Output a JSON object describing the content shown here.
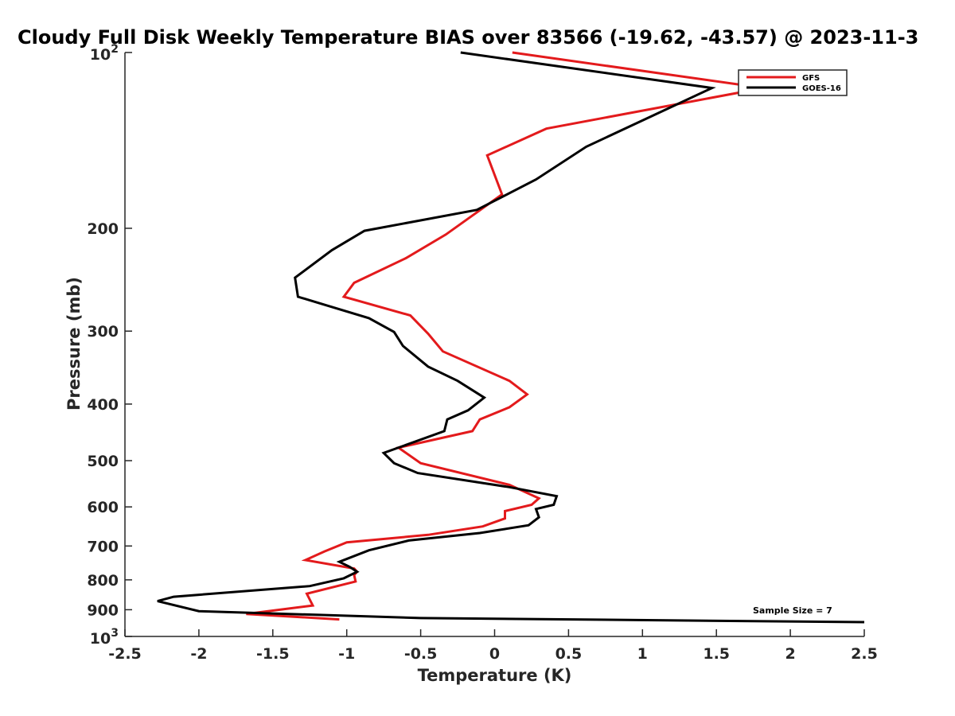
{
  "chart_data": {
    "type": "line",
    "title": "Cloudy Full Disk Weekly Temperature BIAS over 83566 (-19.62, -43.57) @ 2023-11-3",
    "xlabel": "Temperature (K)",
    "ylabel": "Pressure (mb)",
    "xlim": [
      -2.5,
      2.5
    ],
    "ylim": [
      100,
      1000
    ],
    "y_scale": "log",
    "y_reversed": true,
    "xticks": [
      "-2.5",
      "-2",
      "-1.5",
      "-1",
      "-0.5",
      "0",
      "0.5",
      "1",
      "1.5",
      "2",
      "2.5"
    ],
    "yticks": [
      {
        "value": 100,
        "base": "10",
        "exp": "2"
      },
      {
        "value": 200,
        "label": "200"
      },
      {
        "value": 300,
        "label": "300"
      },
      {
        "value": 400,
        "label": "400"
      },
      {
        "value": 500,
        "label": "500"
      },
      {
        "value": 600,
        "label": "600"
      },
      {
        "value": 700,
        "label": "700"
      },
      {
        "value": 800,
        "label": "800"
      },
      {
        "value": 900,
        "label": "900"
      },
      {
        "value": 1000,
        "base": "10",
        "exp": "3"
      }
    ],
    "grid": false,
    "legend_position": "top-right",
    "annotation": "Sample Size = 7",
    "series": [
      {
        "name": "GFS",
        "color": "#e31a1c",
        "points": [
          [
            0.12,
            100
          ],
          [
            1.82,
            115
          ],
          [
            0.35,
            135
          ],
          [
            -0.05,
            150
          ],
          [
            0.05,
            175
          ],
          [
            -0.33,
            205
          ],
          [
            -0.6,
            225
          ],
          [
            -0.95,
            248
          ],
          [
            -1.02,
            262
          ],
          [
            -0.57,
            282
          ],
          [
            -0.45,
            303
          ],
          [
            -0.35,
            325
          ],
          [
            0.1,
            365
          ],
          [
            0.22,
            385
          ],
          [
            0.1,
            405
          ],
          [
            -0.1,
            425
          ],
          [
            -0.15,
            445
          ],
          [
            -0.65,
            475
          ],
          [
            -0.5,
            505
          ],
          [
            0.1,
            550
          ],
          [
            0.3,
            580
          ],
          [
            0.25,
            595
          ],
          [
            0.07,
            610
          ],
          [
            0.07,
            628
          ],
          [
            -0.08,
            648
          ],
          [
            -0.45,
            670
          ],
          [
            -1.0,
            690
          ],
          [
            -1.15,
            715
          ],
          [
            -1.28,
            740
          ],
          [
            -0.95,
            765
          ],
          [
            -0.93,
            775
          ],
          [
            -0.95,
            785
          ],
          [
            -0.94,
            805
          ],
          [
            -1.27,
            845
          ],
          [
            -1.23,
            885
          ],
          [
            -1.68,
            915
          ],
          [
            -1.05,
            935
          ]
        ]
      },
      {
        "name": "GOES-16",
        "color": "#000000",
        "points": [
          [
            -0.23,
            100
          ],
          [
            1.47,
            115
          ],
          [
            0.62,
            145
          ],
          [
            0.28,
            165
          ],
          [
            -0.12,
            186
          ],
          [
            -0.88,
            202
          ],
          [
            -1.1,
            218
          ],
          [
            -1.35,
            243
          ],
          [
            -1.33,
            262
          ],
          [
            -0.85,
            285
          ],
          [
            -0.68,
            301
          ],
          [
            -0.62,
            318
          ],
          [
            -0.45,
            345
          ],
          [
            -0.25,
            365
          ],
          [
            -0.07,
            390
          ],
          [
            -0.18,
            410
          ],
          [
            -0.32,
            425
          ],
          [
            -0.34,
            445
          ],
          [
            -0.6,
            470
          ],
          [
            -0.75,
            485
          ],
          [
            -0.68,
            505
          ],
          [
            -0.52,
            525
          ],
          [
            0.1,
            555
          ],
          [
            0.42,
            575
          ],
          [
            0.4,
            595
          ],
          [
            0.28,
            605
          ],
          [
            0.3,
            625
          ],
          [
            0.23,
            645
          ],
          [
            -0.1,
            665
          ],
          [
            -0.58,
            685
          ],
          [
            -0.85,
            712
          ],
          [
            -1.05,
            745
          ],
          [
            -0.98,
            760
          ],
          [
            -0.93,
            775
          ],
          [
            -1.02,
            795
          ],
          [
            -1.25,
            820
          ],
          [
            -2.17,
            855
          ],
          [
            -2.28,
            870
          ],
          [
            -2.0,
            905
          ],
          [
            -0.5,
            930
          ],
          [
            2.5,
            945
          ]
        ]
      }
    ]
  }
}
